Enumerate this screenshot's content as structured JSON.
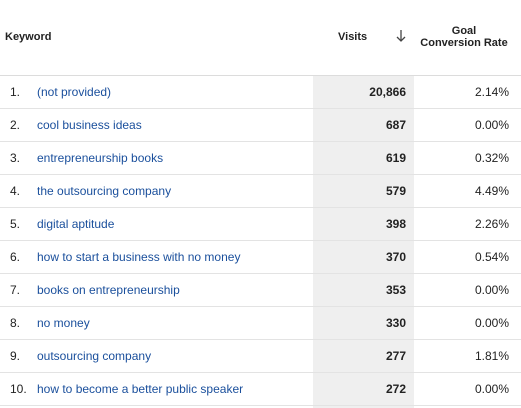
{
  "header": {
    "keyword": "Keyword",
    "visits": "Visits",
    "goal_line1": "Goal",
    "goal_line2": "Conversion Rate",
    "sort_icon": "arrow-down-icon"
  },
  "rows": [
    {
      "num": "1.",
      "keyword": "(not provided)",
      "visits": "20,866",
      "rate": "2.14%"
    },
    {
      "num": "2.",
      "keyword": "cool business ideas",
      "visits": "687",
      "rate": "0.00%"
    },
    {
      "num": "3.",
      "keyword": "entrepreneurship books",
      "visits": "619",
      "rate": "0.32%"
    },
    {
      "num": "4.",
      "keyword": "the outsourcing company",
      "visits": "579",
      "rate": "4.49%"
    },
    {
      "num": "5.",
      "keyword": "digital aptitude",
      "visits": "398",
      "rate": "2.26%"
    },
    {
      "num": "6.",
      "keyword": "how to start a business with no money",
      "visits": "370",
      "rate": "0.54%"
    },
    {
      "num": "7.",
      "keyword": "books on entrepreneurship",
      "visits": "353",
      "rate": "0.00%"
    },
    {
      "num": "8.",
      "keyword": "no money",
      "visits": "330",
      "rate": "0.00%"
    },
    {
      "num": "9.",
      "keyword": "outsourcing company",
      "visits": "277",
      "rate": "1.81%"
    },
    {
      "num": "10.",
      "keyword": "how to become a better public speaker",
      "visits": "272",
      "rate": "0.00%"
    }
  ],
  "colors": {
    "link": "#1a4f9c",
    "visits_column_bg": "#efefef",
    "divider": "#e3e3e3"
  }
}
